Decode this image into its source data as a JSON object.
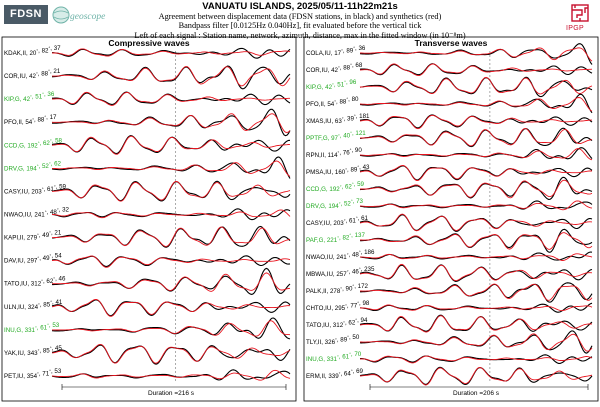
{
  "header": {
    "title": "VANUATU ISLANDS, 2025/05/11-11h22m21s",
    "line2": "Agreement between displacement data (FDSN stations, in black) and synthetics (red)",
    "line3": "Bandpass filter [0.0125Hz 0.040Hz], fit evaluated before the vertical tick",
    "line4": "Left of each signal : Station name, network, azimuth, distance, max in the fitted window (in 10⁻⁸m)"
  },
  "logos": {
    "fdsn": "FDSN",
    "geoscope": "geoscope",
    "ipgp": "IPGP"
  },
  "colors": {
    "data": "#000000",
    "synthetic": "#e8141e",
    "highlight": "#22aa22"
  },
  "chart_data": [
    {
      "type": "line",
      "title": "Compressive waves",
      "duration_label": "Duration =216 s",
      "stations": [
        {
          "label": "KDAK,II, 20",
          "az_sup": "°",
          "rest": ", 82",
          "dist_sup": "°",
          "max": ", 37",
          "highlight": false
        },
        {
          "label": "COR,IU, 42",
          "az_sup": "°",
          "rest": ", 88",
          "dist_sup": "°",
          "max": ", 21",
          "highlight": false
        },
        {
          "label": "KIP,G, 42",
          "az_sup": "°",
          "rest": ", 51",
          "dist_sup": "°",
          "max": ", 36",
          "highlight": true
        },
        {
          "label": "PFO,II, 54",
          "az_sup": "°",
          "rest": ", 88",
          "dist_sup": "°",
          "max": ", 17",
          "highlight": false
        },
        {
          "label": "CCD,G, 192",
          "az_sup": "°",
          "rest": ", 62",
          "dist_sup": "°",
          "max": ", 58",
          "highlight": true
        },
        {
          "label": "DRV,G, 194",
          "az_sup": "°",
          "rest": ", 52",
          "dist_sup": "°",
          "max": ", 62",
          "highlight": true
        },
        {
          "label": "CASY,IU, 203",
          "az_sup": "°",
          "rest": ", 61",
          "dist_sup": "°",
          "max": ", 59",
          "highlight": false
        },
        {
          "label": "NWAO,IU, 241",
          "az_sup": "°",
          "rest": ", 48",
          "dist_sup": "°",
          "max": ", 32",
          "highlight": false
        },
        {
          "label": "KAPI,II, 279",
          "az_sup": "°",
          "rest": ", 49",
          "dist_sup": "°",
          "max": ", 21",
          "highlight": false
        },
        {
          "label": "DAV,IU, 297",
          "az_sup": "°",
          "rest": ", 49",
          "dist_sup": "°",
          "max": ", 54",
          "highlight": false
        },
        {
          "label": "TATO,IU, 312",
          "az_sup": "°",
          "rest": ", 62",
          "dist_sup": "°",
          "max": ", 46",
          "highlight": false
        },
        {
          "label": "ULN,IU, 324",
          "az_sup": "°",
          "rest": ", 85",
          "dist_sup": "°",
          "max": ", 41",
          "highlight": false
        },
        {
          "label": "INU,G, 331",
          "az_sup": "°",
          "rest": ", 61",
          "dist_sup": "°",
          "max": ", 53",
          "highlight": true
        },
        {
          "label": "YAK,IU, 343",
          "az_sup": "°",
          "rest": ", 85",
          "dist_sup": "°",
          "max": ", 45",
          "highlight": false
        },
        {
          "label": "PET,IU, 354",
          "az_sup": "°",
          "rest": ", 71",
          "dist_sup": "°",
          "max": ", 53",
          "highlight": false
        }
      ]
    },
    {
      "type": "line",
      "title": "Transverse waves",
      "duration_label": "Duration =206 s",
      "stations": [
        {
          "label": "COLA,IU, 17",
          "az_sup": "°",
          "rest": ", 89",
          "dist_sup": "°",
          "max": ", 36",
          "highlight": false
        },
        {
          "label": "COR,IU, 42",
          "az_sup": "°",
          "rest": ", 88",
          "dist_sup": "°",
          "max": ", 68",
          "highlight": false
        },
        {
          "label": "KIP,G, 42",
          "az_sup": "°",
          "rest": ", 51",
          "dist_sup": "°",
          "max": ", 96",
          "highlight": true
        },
        {
          "label": "PFO,II, 54",
          "az_sup": "°",
          "rest": ", 88",
          "dist_sup": "°",
          "max": ", 80",
          "highlight": false
        },
        {
          "label": "XMAS,IU, 63",
          "az_sup": "°",
          "rest": ", 39",
          "dist_sup": "°",
          "max": ", 181",
          "highlight": false
        },
        {
          "label": "PPTF,G, 97",
          "az_sup": "°",
          "rest": ", 40",
          "dist_sup": "°",
          "max": ", 121",
          "highlight": true
        },
        {
          "label": "RPN,II, 114",
          "az_sup": "°",
          "rest": ", 76",
          "dist_sup": "°",
          "max": ", 90",
          "highlight": false
        },
        {
          "label": "PMSA,IU, 160",
          "az_sup": "°",
          "rest": ", 89",
          "dist_sup": "°",
          "max": ", 43",
          "highlight": false
        },
        {
          "label": "CCD,G, 192",
          "az_sup": "°",
          "rest": ", 62",
          "dist_sup": "°",
          "max": ", 59",
          "highlight": true
        },
        {
          "label": "DRV,G, 194",
          "az_sup": "°",
          "rest": ", 52",
          "dist_sup": "°",
          "max": ", 73",
          "highlight": true
        },
        {
          "label": "CASY,IU, 203",
          "az_sup": "°",
          "rest": ", 61",
          "dist_sup": "°",
          "max": ", 61",
          "highlight": false
        },
        {
          "label": "PAF,G, 221",
          "az_sup": "°",
          "rest": ", 82",
          "dist_sup": "°",
          "max": ", 137",
          "highlight": true
        },
        {
          "label": "NWAO,IU, 241",
          "az_sup": "°",
          "rest": ", 48",
          "dist_sup": "°",
          "max": ", 186",
          "highlight": false
        },
        {
          "label": "MBWA,IU, 257",
          "az_sup": "°",
          "rest": ", 46",
          "dist_sup": "°",
          "max": ", 235",
          "highlight": false
        },
        {
          "label": "PALK,II, 278",
          "az_sup": "°",
          "rest": ", 90",
          "dist_sup": "°",
          "max": ", 172",
          "highlight": false
        },
        {
          "label": "CHTO,IU, 295",
          "az_sup": "°",
          "rest": ", 77",
          "dist_sup": "°",
          "max": ", 98",
          "highlight": false
        },
        {
          "label": "TATO,IU, 312",
          "az_sup": "°",
          "rest": ", 62",
          "dist_sup": "°",
          "max": ", 94",
          "highlight": false
        },
        {
          "label": "TLY,II, 326",
          "az_sup": "°",
          "rest": ", 89",
          "dist_sup": "°",
          "max": ", 50",
          "highlight": false
        },
        {
          "label": "INU,G, 331",
          "az_sup": "°",
          "rest": ", 61",
          "dist_sup": "°",
          "max": ", 70",
          "highlight": true
        },
        {
          "label": "ERM,II, 339",
          "az_sup": "°",
          "rest": ", 64",
          "dist_sup": "°",
          "max": ", 69",
          "highlight": false
        }
      ]
    }
  ]
}
